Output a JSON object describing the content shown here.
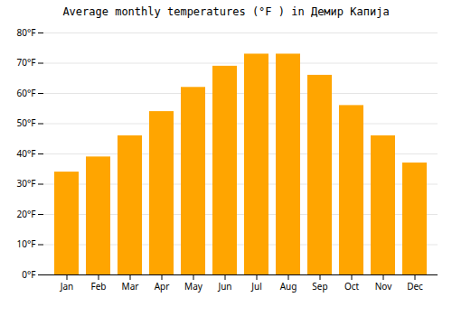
{
  "chart_data": {
    "type": "bar",
    "title": "Average monthly temperatures (°F ) in Демир Капија",
    "categories": [
      "Jan",
      "Feb",
      "Mar",
      "Apr",
      "May",
      "Jun",
      "Jul",
      "Aug",
      "Sep",
      "Oct",
      "Nov",
      "Dec"
    ],
    "values": [
      34,
      39,
      46,
      54,
      62,
      69,
      73,
      73,
      66,
      56,
      46,
      37
    ],
    "color": "#FFA500",
    "ylim": [
      0,
      80
    ],
    "yticks": [
      {
        "value": 0,
        "label": "0°F"
      },
      {
        "value": 10,
        "label": "10°F"
      },
      {
        "value": 20,
        "label": "20°F"
      },
      {
        "value": 30,
        "label": "30°F"
      },
      {
        "value": 40,
        "label": "40°F"
      },
      {
        "value": 50,
        "label": "50°F"
      },
      {
        "value": 60,
        "label": "60°F"
      },
      {
        "value": 70,
        "label": "70°F"
      },
      {
        "value": 80,
        "label": "80°F"
      }
    ],
    "grid": true
  }
}
